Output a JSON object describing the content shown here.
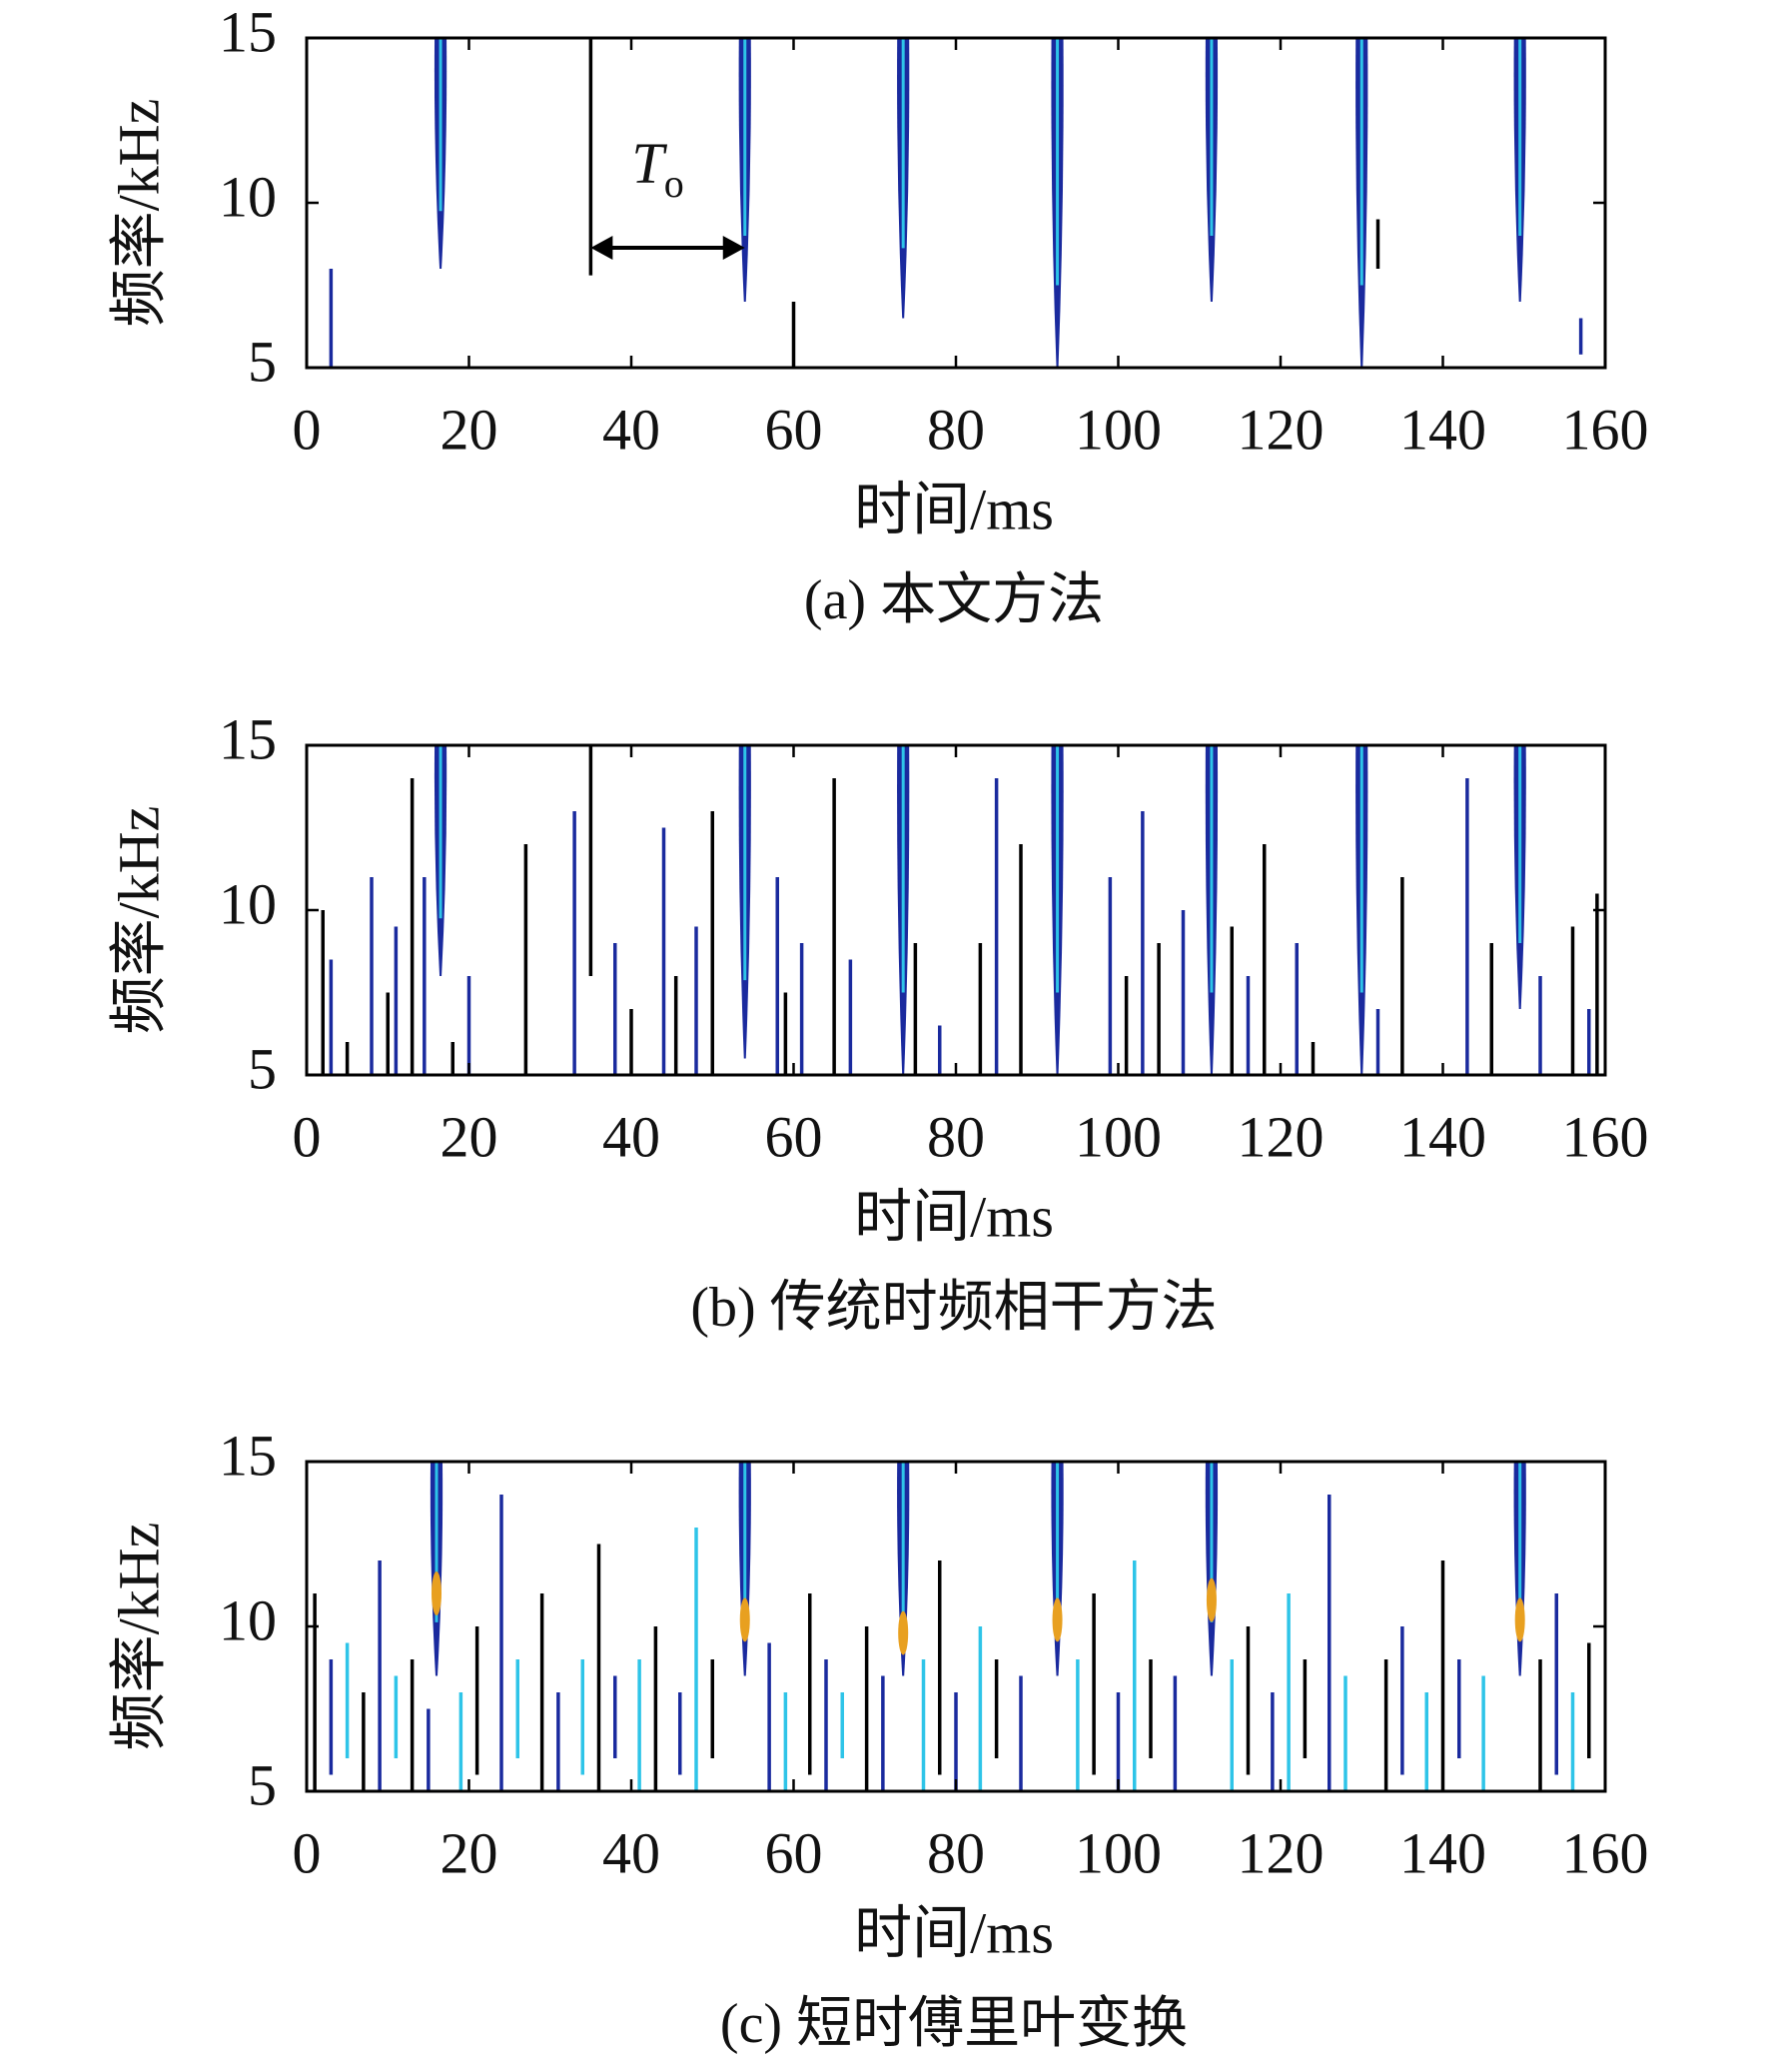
{
  "chart_data": [
    {
      "type": "spectrogram",
      "caption": "(a) 本文方法",
      "xlabel": "时间/ms",
      "ylabel": "频率/kHz",
      "xlim": [
        0,
        160
      ],
      "ylim": [
        5,
        15
      ],
      "xticks": [
        0,
        20,
        40,
        60,
        80,
        100,
        120,
        140,
        160
      ],
      "yticks": [
        5,
        10,
        15
      ],
      "pulse_color": "#1a2a9e",
      "pulse_core": "#2ec4e8",
      "pulses": [
        {
          "x": 16.5,
          "low": 8,
          "high": 15
        },
        {
          "x": 54,
          "low": 7,
          "high": 15
        },
        {
          "x": 73.5,
          "low": 6.5,
          "high": 15
        },
        {
          "x": 92.5,
          "low": 5,
          "high": 15
        },
        {
          "x": 111.5,
          "low": 7,
          "high": 15
        },
        {
          "x": 130,
          "low": 5,
          "high": 15
        },
        {
          "x": 149.5,
          "low": 7,
          "high": 15
        }
      ],
      "noise_colors": [
        "#000000",
        "#1a2a9e"
      ],
      "noise": [
        [
          35,
          7.8,
          15
        ],
        [
          3,
          5,
          8
        ],
        [
          60,
          5,
          7
        ],
        [
          157,
          5.4,
          6.5
        ],
        [
          132,
          8,
          9.5
        ]
      ],
      "annotation": {
        "text": "T",
        "subscript": "o"
      }
    },
    {
      "type": "spectrogram",
      "caption": "(b) 传统时频相干方法",
      "xlabel": "时间/ms",
      "ylabel": "频率/kHz",
      "xlim": [
        0,
        160
      ],
      "ylim": [
        5,
        15
      ],
      "xticks": [
        0,
        20,
        40,
        60,
        80,
        100,
        120,
        140,
        160
      ],
      "yticks": [
        5,
        10,
        15
      ],
      "pulse_color": "#1a2a9e",
      "pulse_core": "#2ec4e8",
      "pulses": [
        {
          "x": 16.5,
          "low": 8,
          "high": 15
        },
        {
          "x": 54,
          "low": 5.5,
          "high": 15
        },
        {
          "x": 73.5,
          "low": 5,
          "high": 15
        },
        {
          "x": 92.5,
          "low": 5,
          "high": 15
        },
        {
          "x": 111.5,
          "low": 5,
          "high": 15
        },
        {
          "x": 130,
          "low": 5,
          "high": 15
        },
        {
          "x": 149.5,
          "low": 7,
          "high": 15
        }
      ],
      "noise_colors": [
        "#000000",
        "#1a2a9e"
      ],
      "noise": [
        [
          2,
          5,
          10
        ],
        [
          3,
          5,
          8.5
        ],
        [
          5,
          5,
          6
        ],
        [
          8,
          5,
          11
        ],
        [
          10,
          5,
          7.5
        ],
        [
          11,
          5,
          9.5
        ],
        [
          13,
          5,
          14
        ],
        [
          14.5,
          5,
          11
        ],
        [
          18,
          5,
          6
        ],
        [
          20,
          5,
          8
        ],
        [
          27,
          5,
          12
        ],
        [
          33,
          5,
          13
        ],
        [
          35,
          8,
          15
        ],
        [
          38,
          5,
          9
        ],
        [
          40,
          5,
          7
        ],
        [
          44,
          5,
          12.5
        ],
        [
          45.5,
          5,
          8
        ],
        [
          48,
          5,
          9.5
        ],
        [
          50,
          5,
          13
        ],
        [
          58,
          5,
          11
        ],
        [
          59,
          5,
          7.5
        ],
        [
          61,
          5,
          9
        ],
        [
          65,
          5,
          14
        ],
        [
          67,
          5,
          8.5
        ],
        [
          75,
          5,
          9
        ],
        [
          78,
          5,
          6.5
        ],
        [
          83,
          5,
          9
        ],
        [
          85,
          5,
          14
        ],
        [
          88,
          5,
          12
        ],
        [
          99,
          5,
          11
        ],
        [
          101,
          5,
          8
        ],
        [
          103,
          5,
          13
        ],
        [
          105,
          5,
          9
        ],
        [
          108,
          5,
          10
        ],
        [
          114,
          5,
          9.5
        ],
        [
          116,
          5,
          8
        ],
        [
          118,
          5,
          12
        ],
        [
          122,
          5,
          9
        ],
        [
          124,
          5,
          6
        ],
        [
          132,
          5,
          7
        ],
        [
          135,
          5,
          11
        ],
        [
          143,
          5,
          14
        ],
        [
          146,
          5,
          9
        ],
        [
          152,
          5,
          8
        ],
        [
          156,
          5,
          9.5
        ],
        [
          158,
          5,
          7
        ],
        [
          159,
          5,
          10.5
        ]
      ]
    },
    {
      "type": "spectrogram",
      "caption": "(c) 短时傅里叶变换",
      "xlabel": "时间/ms",
      "ylabel": "频率/kHz",
      "xlim": [
        0,
        160
      ],
      "ylim": [
        5,
        15
      ],
      "xticks": [
        0,
        20,
        40,
        60,
        80,
        100,
        120,
        140,
        160
      ],
      "yticks": [
        5,
        10,
        15
      ],
      "pulse_color": "#1a2a9e",
      "pulse_core": "#2ec4e8",
      "peak_color": "#e8a020",
      "pulses": [
        {
          "x": 16,
          "low": 8.5,
          "high": 15,
          "peak": 11
        },
        {
          "x": 54,
          "low": 8.5,
          "high": 15,
          "peak": 10.2
        },
        {
          "x": 73.5,
          "low": 8.5,
          "high": 15,
          "peak": 9.8
        },
        {
          "x": 92.5,
          "low": 8.5,
          "high": 15,
          "peak": 10.2
        },
        {
          "x": 111.5,
          "low": 8.5,
          "high": 15,
          "peak": 10.8
        },
        {
          "x": 149.5,
          "low": 8.5,
          "high": 15,
          "peak": 10.2
        }
      ],
      "noise_colors": [
        "#000000",
        "#1a2a9e",
        "#2ec4e8"
      ],
      "noise": [
        [
          1,
          5,
          11
        ],
        [
          3,
          5.5,
          9
        ],
        [
          5,
          6,
          9.5
        ],
        [
          7,
          5,
          8
        ],
        [
          9,
          5,
          12
        ],
        [
          11,
          6,
          8.5
        ],
        [
          13,
          5,
          9
        ],
        [
          15,
          5,
          7.5
        ],
        [
          19,
          5,
          8
        ],
        [
          21,
          5.5,
          10
        ],
        [
          24,
          5,
          14
        ],
        [
          26,
          6,
          9
        ],
        [
          29,
          5,
          11
        ],
        [
          31,
          5,
          8
        ],
        [
          34,
          5.5,
          9
        ],
        [
          36,
          5,
          12.5
        ],
        [
          38,
          6,
          8.5
        ],
        [
          41,
          5,
          9
        ],
        [
          43,
          5,
          10
        ],
        [
          46,
          5.5,
          8
        ],
        [
          48,
          5,
          13
        ],
        [
          50,
          6,
          9
        ],
        [
          57,
          5,
          9.5
        ],
        [
          59,
          5,
          8
        ],
        [
          62,
          5.5,
          11
        ],
        [
          64,
          5,
          9
        ],
        [
          66,
          6,
          8
        ],
        [
          69,
          5,
          10
        ],
        [
          71,
          5,
          8.5
        ],
        [
          76,
          5,
          9
        ],
        [
          78,
          5.5,
          12
        ],
        [
          80,
          5,
          8
        ],
        [
          83,
          5,
          10
        ],
        [
          85,
          6,
          9
        ],
        [
          88,
          5,
          8.5
        ],
        [
          95,
          5,
          9
        ],
        [
          97,
          5.5,
          11
        ],
        [
          100,
          5,
          8
        ],
        [
          102,
          5,
          12
        ],
        [
          104,
          6,
          9
        ],
        [
          107,
          5,
          8.5
        ],
        [
          114,
          5,
          9
        ],
        [
          116,
          5.5,
          10
        ],
        [
          119,
          5,
          8
        ],
        [
          121,
          5,
          11
        ],
        [
          123,
          6,
          9
        ],
        [
          126,
          5,
          14
        ],
        [
          128,
          5,
          8.5
        ],
        [
          133,
          5,
          9
        ],
        [
          135,
          5.5,
          10
        ],
        [
          138,
          5,
          8
        ],
        [
          140,
          5,
          12
        ],
        [
          142,
          6,
          9
        ],
        [
          145,
          5,
          8.5
        ],
        [
          152,
          5,
          9
        ],
        [
          154,
          5.5,
          11
        ],
        [
          156,
          5,
          8
        ],
        [
          158,
          6,
          9.5
        ]
      ]
    }
  ]
}
